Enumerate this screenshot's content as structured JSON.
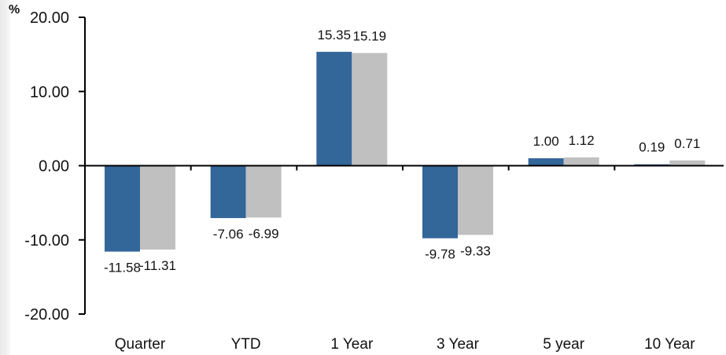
{
  "chart_data": {
    "type": "bar",
    "unit_label": "%",
    "categories": [
      "Quarter",
      "YTD",
      "1 Year",
      "3 Year",
      "5 year",
      "10 Year"
    ],
    "series": [
      {
        "values": [
          -11.58,
          -7.06,
          15.35,
          -9.78,
          1.0,
          0.19
        ],
        "value_labels": [
          "-11.58",
          "-7.06",
          "15.35",
          "-9.78",
          "1.00",
          "0.19"
        ],
        "color": "#336699"
      },
      {
        "values": [
          -11.31,
          -6.99,
          15.19,
          -9.33,
          1.12,
          0.71
        ],
        "value_labels": [
          "-11.31",
          "-6.99",
          "15.19",
          "-9.33",
          "1.12",
          "0.71"
        ],
        "color": "#c0c0c0"
      }
    ],
    "y_ticks": [
      20,
      10,
      0,
      -10,
      -20
    ],
    "y_tick_labels": [
      "20.00",
      "10.00",
      "0.00",
      "-10.00",
      "-20.00"
    ],
    "ylim": [
      -20,
      20
    ],
    "grid": false,
    "legend": "none"
  }
}
